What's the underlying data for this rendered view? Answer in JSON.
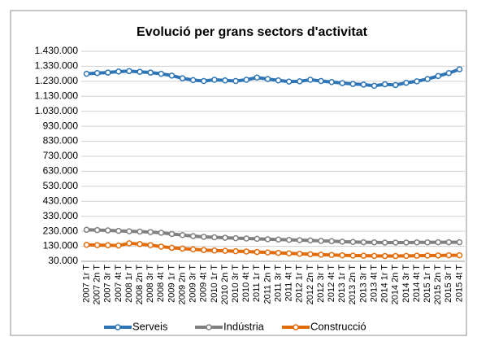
{
  "chart_data": {
    "type": "line",
    "title": "Evolució per grans sectors d'activitat",
    "categories": [
      "2007 1r T",
      "2007 2n T",
      "2007 3r T",
      "2007 4t T",
      "2008 1r T",
      "2008 2n T",
      "2008 3r T",
      "2008 4t T",
      "2009 1r T",
      "2009 2n T",
      "2009 3r T",
      "2009 4t T",
      "2010 1r T",
      "2010 2n T",
      "2010 3r T",
      "2010 4t T",
      "2011 1r T",
      "2011 2n T",
      "2011 3r T",
      "2011 4t T",
      "2012 1r T",
      "2012 2n T",
      "2012 3r T",
      "2012 4t T",
      "2013 1r T",
      "2013 2n T",
      "2013 3r T",
      "2013 4t T",
      "2014 1r T",
      "2014 2n T",
      "2014 3r T",
      "2014 4t T",
      "2015 1r T",
      "2015 2n T",
      "2015 3r T",
      "2015 4t T"
    ],
    "series": [
      {
        "name": "Serveis",
        "color": "#2e75b6",
        "values": [
          1280000,
          1285000,
          1288000,
          1295000,
          1298000,
          1293000,
          1288000,
          1280000,
          1268000,
          1250000,
          1238000,
          1232000,
          1240000,
          1236000,
          1232000,
          1240000,
          1255000,
          1245000,
          1236000,
          1228000,
          1230000,
          1240000,
          1232000,
          1225000,
          1218000,
          1212000,
          1208000,
          1200000,
          1210000,
          1205000,
          1220000,
          1230000,
          1245000,
          1265000,
          1285000,
          1310000
        ]
      },
      {
        "name": "Indústria",
        "color": "#808080",
        "values": [
          240000,
          238000,
          236000,
          233000,
          230000,
          228000,
          225000,
          220000,
          212000,
          205000,
          198000,
          193000,
          190000,
          187000,
          184000,
          182000,
          180000,
          177000,
          175000,
          173000,
          171000,
          169000,
          166000,
          164000,
          161000,
          159000,
          157000,
          156000,
          155000,
          155000,
          155000,
          156000,
          156000,
          157000,
          157000,
          157000
        ]
      },
      {
        "name": "Construcció",
        "color": "#e36c0a",
        "values": [
          140000,
          138000,
          137000,
          135000,
          150000,
          145000,
          138000,
          128000,
          120000,
          115000,
          110000,
          105000,
          102000,
          100000,
          97000,
          95000,
          92000,
          89000,
          86000,
          83000,
          80000,
          77000,
          74000,
          72000,
          70000,
          68000,
          67000,
          66000,
          65000,
          65000,
          66000,
          67000,
          68000,
          69000,
          70000,
          70000
        ]
      }
    ],
    "ylim": [
      30000,
      1430000
    ],
    "yticks": [
      {
        "value": 30000,
        "label": "30.000"
      },
      {
        "value": 130000,
        "label": "130.000"
      },
      {
        "value": 230000,
        "label": "230.000"
      },
      {
        "value": 330000,
        "label": "330.000"
      },
      {
        "value": 430000,
        "label": "430.000"
      },
      {
        "value": 530000,
        "label": "530.000"
      },
      {
        "value": 630000,
        "label": "630.000"
      },
      {
        "value": 730000,
        "label": "730.000"
      },
      {
        "value": 830000,
        "label": "830.000"
      },
      {
        "value": 930000,
        "label": "930.000"
      },
      {
        "value": 1030000,
        "label": "1.030.000"
      },
      {
        "value": 1130000,
        "label": "1.130.000"
      },
      {
        "value": 1230000,
        "label": "1.230.000"
      },
      {
        "value": 1330000,
        "label": "1.330.000"
      },
      {
        "value": 1430000,
        "label": "1.430.000"
      }
    ],
    "grid": true
  }
}
